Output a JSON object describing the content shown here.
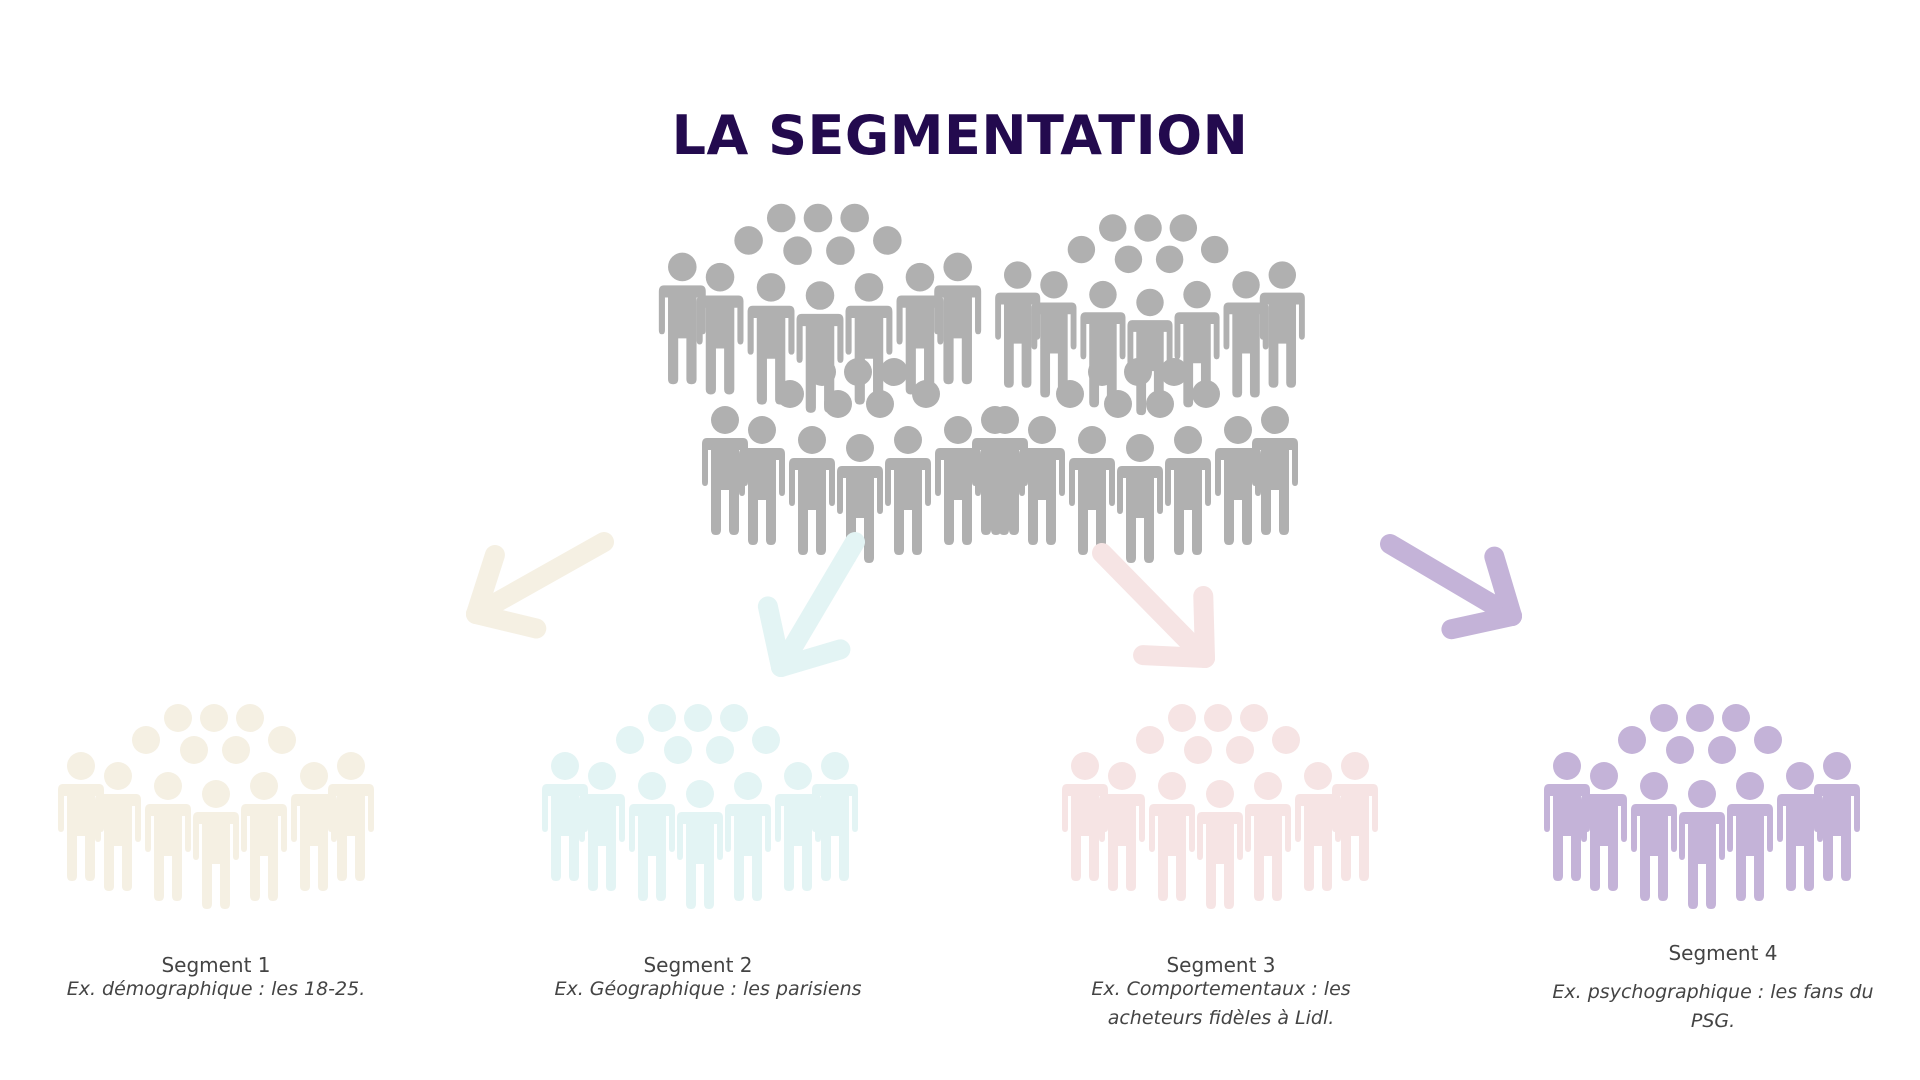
{
  "title": "LA SEGMENTATION",
  "colors": {
    "title": "#230a4e",
    "crowd": "#b0b0b0",
    "text": "#444444"
  },
  "crowd_icon": "people-crowd-icon",
  "segments": [
    {
      "label": "Segment 1",
      "description": "Ex. démographique : les 18-25.",
      "color": "#f5f0e3",
      "icon": "people-group-icon",
      "arrow_icon": "arrow-icon"
    },
    {
      "label": "Segment 2",
      "description": "Ex. Géographique : les parisiens",
      "color": "#e3f4f4",
      "icon": "people-group-icon",
      "arrow_icon": "arrow-icon"
    },
    {
      "label": "Segment 3",
      "description": "Ex. Comportementaux : les acheteurs fidèles à Lidl.",
      "color": "#f6e4e4",
      "icon": "people-group-icon",
      "arrow_icon": "arrow-icon"
    },
    {
      "label": "Segment 4",
      "description": "Ex. psychographique : les fans du PSG.",
      "color": "#c4b3d8",
      "icon": "people-group-icon",
      "arrow_icon": "arrow-icon"
    }
  ]
}
